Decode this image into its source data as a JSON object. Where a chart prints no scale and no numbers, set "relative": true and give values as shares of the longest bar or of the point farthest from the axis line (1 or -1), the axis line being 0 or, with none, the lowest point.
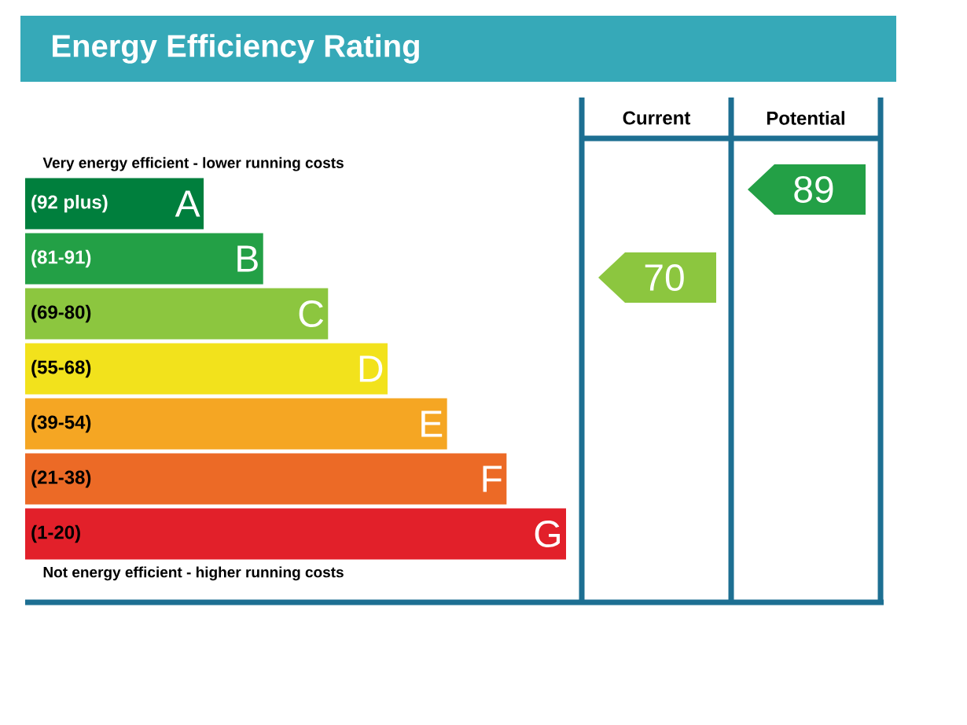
{
  "chart_data": [
    {
      "type": "bar",
      "orientation": "horizontal",
      "relative": true,
      "title": "Energy Efficiency Rating",
      "categories": [
        "(92 plus)",
        "(81-91)",
        "(69-80)",
        "(55-68)",
        "(39-54)",
        "(21-38)",
        "(1-20)"
      ],
      "values": [
        0.33,
        0.44,
        0.56,
        0.67,
        0.78,
        0.89,
        1
      ],
      "colors": [
        "#007f3d",
        "#23a046",
        "#8cc63f",
        "#f2e21c",
        "#f5a623",
        "#ec6a26",
        "#e2202a"
      ],
      "annotations": [
        "Very energy efficient - lower running costs",
        "Not energy efficient - higher running costs",
        {
          "text": "A",
          "y": "(92 plus)"
        },
        {
          "text": "B",
          "y": "(81-91)"
        },
        {
          "text": "C",
          "y": "(69-80)"
        },
        {
          "text": "D",
          "y": "(55-68)"
        },
        {
          "text": "E",
          "y": "(39-54)"
        },
        {
          "text": "F",
          "y": "(21-38)"
        },
        {
          "text": "G",
          "y": "(1-20)"
        }
      ]
    },
    {
      "type": "other",
      "categories": [
        "Current",
        "Potential"
      ],
      "values": [
        70,
        89
      ],
      "value_labels": [
        "70",
        "89"
      ],
      "colors": [
        "#8cc63f",
        "#23a046"
      ]
    }
  ]
}
